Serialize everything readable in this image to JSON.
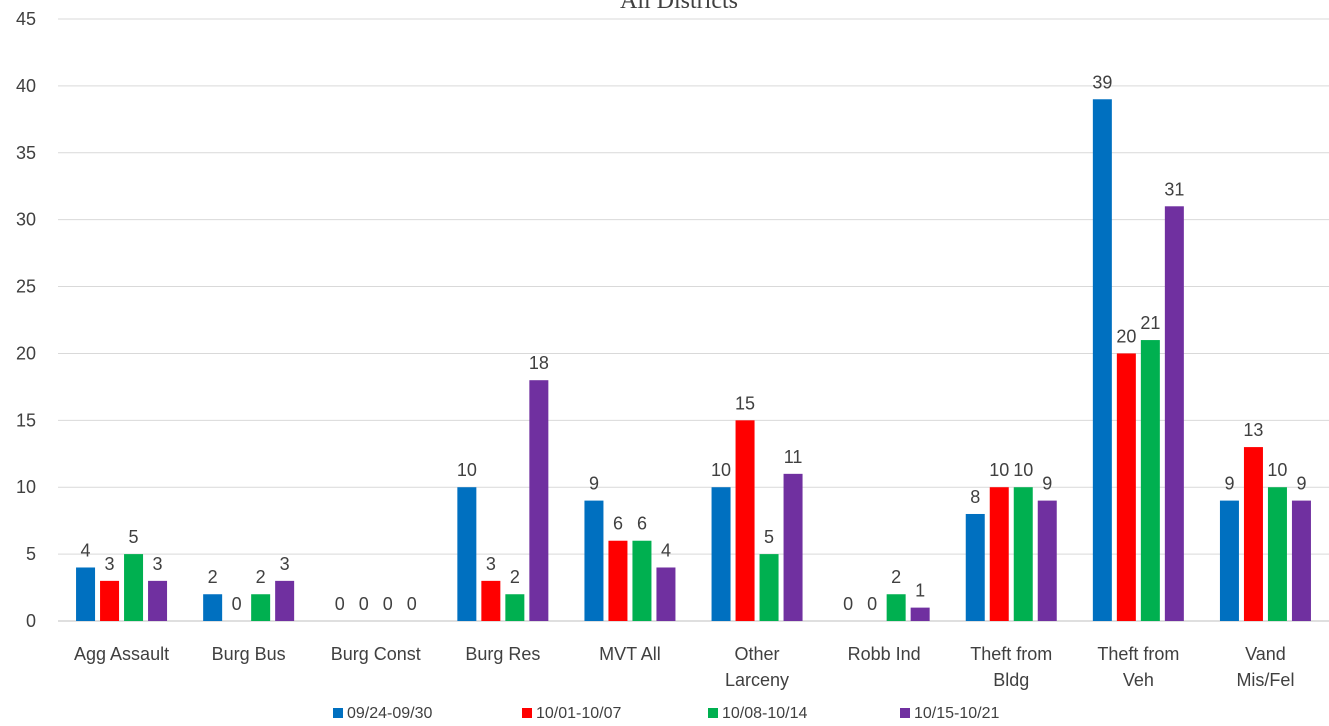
{
  "chart_data": {
    "type": "bar",
    "title": "All Districts",
    "xlabel": "",
    "ylabel": "",
    "ylim": [
      0,
      45
    ],
    "yticks": [
      0,
      5,
      10,
      15,
      20,
      25,
      30,
      35,
      40,
      45
    ],
    "grid": true,
    "legend_position": "bottom",
    "categories": [
      [
        "Agg Assault"
      ],
      [
        "Burg Bus"
      ],
      [
        "Burg Const"
      ],
      [
        "Burg Res"
      ],
      [
        "MVT All"
      ],
      [
        "Other",
        "Larceny"
      ],
      [
        "Robb Ind"
      ],
      [
        "Theft from",
        "Bldg"
      ],
      [
        "Theft from",
        "Veh"
      ],
      [
        "Vand",
        "Mis/Fel"
      ]
    ],
    "series": [
      {
        "name": "09/24-09/30",
        "color": "#0070C0",
        "values": [
          4,
          2,
          0,
          10,
          9,
          10,
          0,
          8,
          39,
          9
        ]
      },
      {
        "name": "10/01-10/07",
        "color": "#FF0000",
        "values": [
          3,
          0,
          0,
          3,
          6,
          15,
          0,
          10,
          20,
          13
        ]
      },
      {
        "name": "10/08-10/14",
        "color": "#00B050",
        "values": [
          5,
          2,
          0,
          2,
          6,
          5,
          2,
          10,
          21,
          10
        ]
      },
      {
        "name": "10/15-10/21",
        "color": "#7030A0",
        "values": [
          3,
          3,
          0,
          18,
          4,
          11,
          1,
          9,
          31,
          9
        ]
      }
    ]
  }
}
